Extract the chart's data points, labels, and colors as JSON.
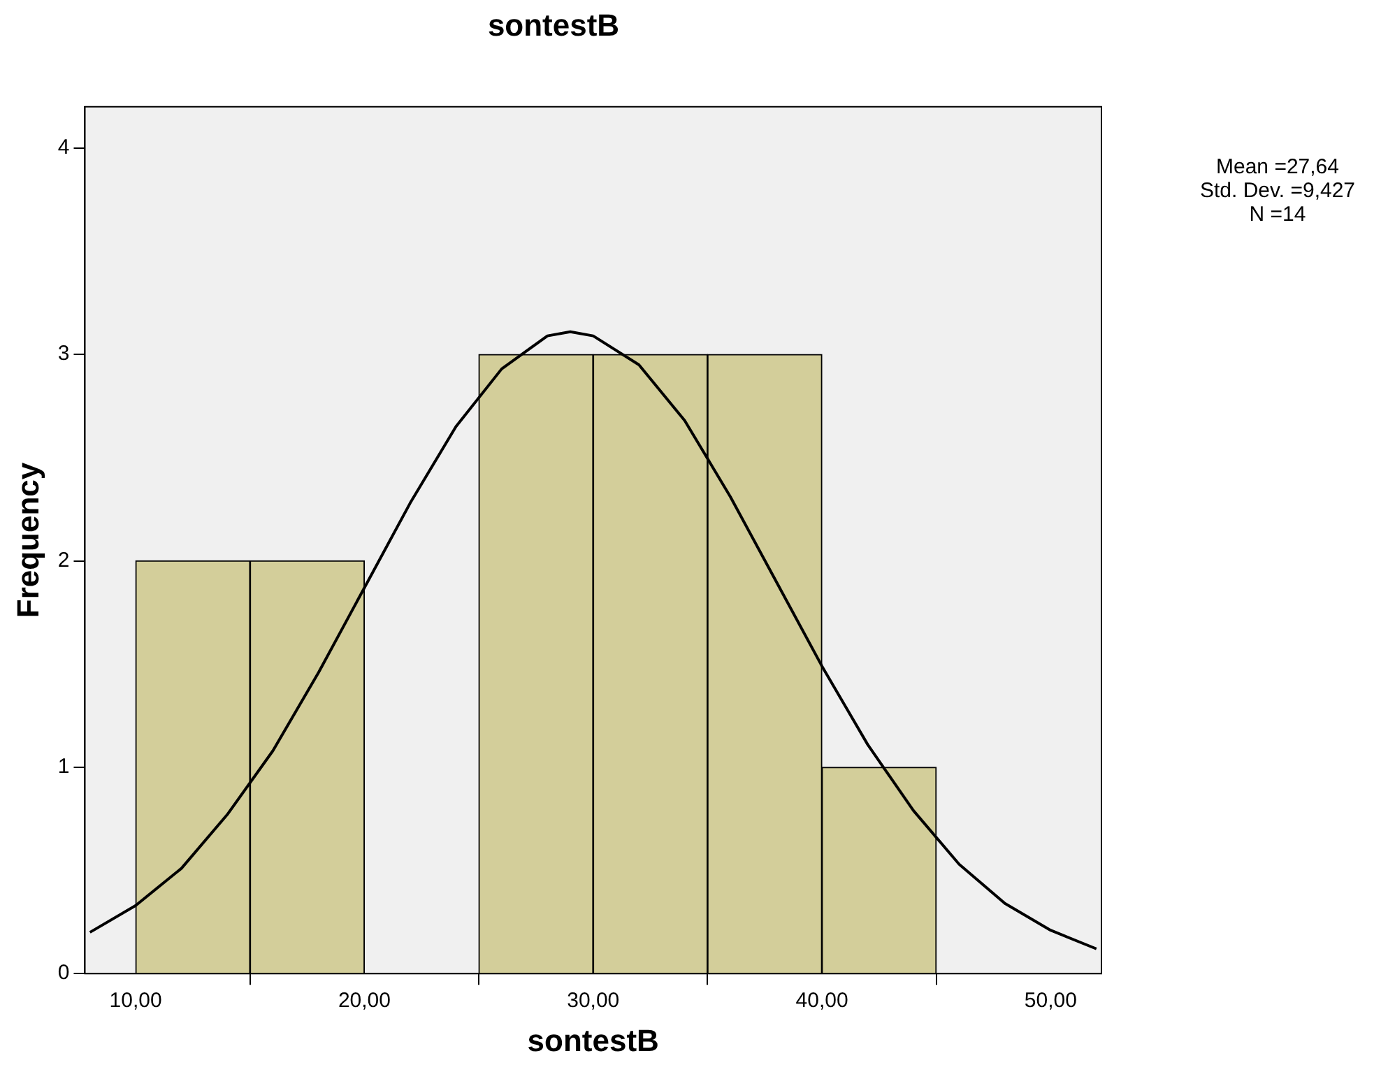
{
  "chart_data": {
    "type": "histogram",
    "title": "sontestB",
    "xlabel": "sontestB",
    "ylabel": "Frequency",
    "bins": [
      10,
      15,
      20,
      25,
      30,
      35,
      40,
      45
    ],
    "values": [
      2,
      2,
      0,
      3,
      3,
      3,
      1
    ],
    "color": "#d3ce9a",
    "series": [
      {
        "type": "line",
        "color": "#000000",
        "x": [
          8,
          10,
          12,
          14,
          16,
          18,
          20,
          22,
          24,
          26,
          28,
          29,
          30,
          32,
          34,
          36,
          38,
          40,
          42,
          44,
          46,
          48,
          50,
          52
        ],
        "values": [
          0.2,
          0.33,
          0.51,
          0.77,
          1.08,
          1.46,
          1.87,
          2.28,
          2.65,
          2.93,
          3.09,
          3.11,
          3.09,
          2.95,
          2.68,
          2.31,
          1.9,
          1.49,
          1.11,
          0.79,
          0.53,
          0.34,
          0.21,
          0.12
        ]
      }
    ],
    "xlim": [
      7.78,
      52.22
    ],
    "xticks": [
      {
        "value": 10,
        "label": "10,00"
      },
      {
        "value": 20,
        "label": "20,00"
      },
      {
        "value": 30,
        "label": "30,00"
      },
      {
        "value": 40,
        "label": "40,00"
      },
      {
        "value": 50,
        "label": "50,00"
      }
    ],
    "ylim": [
      0,
      4.2
    ],
    "yticks": [
      0,
      1,
      2,
      3,
      4
    ],
    "annotations": [
      "Mean =27,64",
      "Std. Dev. =9,427",
      "N =14"
    ],
    "grid": false,
    "legend": false,
    "marker": "none"
  }
}
